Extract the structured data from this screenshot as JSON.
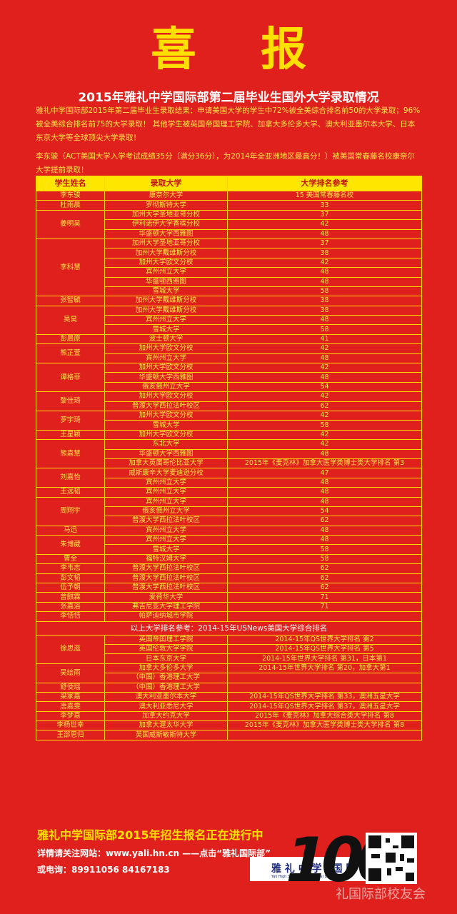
{
  "headline": "喜 报",
  "subtitle": "2015年雅礼中学国际部第二届毕业生国外大学录取情况",
  "intro": "雅礼中学国际部2015年第二届毕业生录取结果：申请美国大学的学生中72%被全美综合排名前50的大学录取；96%被全美综合排名前75的大学录取！ 其他学生被英国帝国理工学院、加拿大多伦多大学、澳大利亚墨尔本大学、日本东京大学等全球顶尖大学录取！",
  "highlight": "李东骏（ACT美国大学入学考试成绩35分（满分36分），为2014年全亚洲地区最高分！）被美国常春藤名校康奈尔大学提前录取！",
  "table": {
    "headers": [
      "学生姓名",
      "录取大学",
      "大学排名参考"
    ],
    "section_note": "以上大学排名参考：2014-15年USNews美国大学综合排名",
    "rows": [
      {
        "name": "李东骏",
        "schools": [
          [
            "康奈尔大学",
            "15 美国常春藤名校"
          ]
        ]
      },
      {
        "name": "杜雨晨",
        "schools": [
          [
            "罗彻斯特大学",
            "33"
          ]
        ]
      },
      {
        "name": "姜明昊",
        "schools": [
          [
            "加州大学圣地亚哥分校",
            "37"
          ],
          [
            "伊利诺伊大学香槟分校",
            "42"
          ],
          [
            "华盛顿大学西雅图",
            "48"
          ]
        ]
      },
      {
        "name": "李科慧",
        "schools": [
          [
            "加州大学圣地亚哥分校",
            "37"
          ],
          [
            "加州大学戴维斯分校",
            "38"
          ],
          [
            "加州大学欧文分校",
            "42"
          ],
          [
            "宾州州立大学",
            "48"
          ],
          [
            "华盛顿西雅图",
            "48"
          ],
          [
            "雪城大学",
            "58"
          ]
        ]
      },
      {
        "name": "张智毓",
        "schools": [
          [
            "加州大学戴维斯分校",
            "38"
          ]
        ]
      },
      {
        "name": "吴昊",
        "schools": [
          [
            "加州大学戴维斯分校",
            "38"
          ],
          [
            "宾州州立大学",
            "48"
          ],
          [
            "雪城大学",
            "58"
          ]
        ]
      },
      {
        "name": "彭晨原",
        "schools": [
          [
            "波士顿大学",
            "41"
          ]
        ]
      },
      {
        "name": "熊芷萱",
        "schools": [
          [
            "加州大学欧文分校",
            "42"
          ],
          [
            "宾州州立大学",
            "48"
          ]
        ]
      },
      {
        "name": "谭格菲",
        "schools": [
          [
            "加州大学欧文分校",
            "42"
          ],
          [
            "华盛顿大学西雅图",
            "48"
          ],
          [
            "俄亥俄州立大学",
            "54"
          ]
        ]
      },
      {
        "name": "黎佳琦",
        "schools": [
          [
            "加州大学欧文分校",
            "42"
          ],
          [
            "普渡大学西拉法叶校区",
            "62"
          ]
        ]
      },
      {
        "name": "罗宇琦",
        "schools": [
          [
            "加州大学欧文分校",
            "42"
          ],
          [
            "雪城大学",
            "58"
          ]
        ]
      },
      {
        "name": "王星颖",
        "schools": [
          [
            "加州大学欧文分校",
            "42"
          ]
        ]
      },
      {
        "name": "熊嘉慧",
        "schools": [
          [
            "东北大学",
            "42"
          ],
          [
            "华盛顿大学西雅图",
            "48"
          ],
          [
            "加拿大英属哥伦比亚大学",
            "2015年《麦克林》加拿大医学类博士类大学排名 第3"
          ]
        ]
      },
      {
        "name": "刘嘉怡",
        "schools": [
          [
            "威斯康辛大学麦迪逊分校",
            "47"
          ],
          [
            "宾州州立大学",
            "48"
          ]
        ]
      },
      {
        "name": "王远韬",
        "schools": [
          [
            "宾州州立大学",
            "48"
          ]
        ]
      },
      {
        "name": "周翔宇",
        "schools": [
          [
            "宾州州立大学",
            "48"
          ],
          [
            "俄亥俄州立大学",
            "54"
          ],
          [
            "普渡大学西拉法叶校区",
            "62"
          ]
        ]
      },
      {
        "name": "马迅",
        "schools": [
          [
            "宾州州立大学",
            "48"
          ]
        ]
      },
      {
        "name": "朱博葳",
        "schools": [
          [
            "宾州州立大学",
            "48"
          ],
          [
            "雪城大学",
            "58"
          ]
        ]
      },
      {
        "name": "曹全",
        "schools": [
          [
            "福特汉姆大学",
            "58"
          ]
        ]
      },
      {
        "name": "李韦志",
        "schools": [
          [
            "普渡大学西拉法叶校区",
            "62"
          ]
        ]
      },
      {
        "name": "彭文韬",
        "schools": [
          [
            "普渡大学西拉法叶校区",
            "62"
          ]
        ]
      },
      {
        "name": "伍予朝",
        "schools": [
          [
            "普渡大学西拉法叶校区",
            "62"
          ]
        ]
      },
      {
        "name": "曾麒霖",
        "schools": [
          [
            "爱荷华大学",
            "71"
          ]
        ]
      },
      {
        "name": "张嘉浴",
        "schools": [
          [
            "弗吉尼亚大学理工学院",
            "71"
          ]
        ]
      },
      {
        "name": "李恬恬",
        "schools": [
          [
            "帕萨迪纳城市学院",
            ""
          ]
        ]
      }
    ],
    "rows2": [
      {
        "name": "徐思滋",
        "schools": [
          [
            "英国帝国理工学院",
            "2014-15年QS世界大学排名 第2"
          ],
          [
            "英国伦敦大学学院",
            "2014-15年QS世界大学排名 第5"
          ],
          [
            "日本东京大学",
            "2014-15年世界大学排名 第31，日本第1"
          ]
        ]
      },
      {
        "name": "吴绘雨",
        "schools": [
          [
            "加拿大多伦多大学",
            "2014-15年世界大学排名 第20，加拿大第1"
          ],
          [
            "（中国）香港理工大学",
            ""
          ]
        ]
      },
      {
        "name": "舒便瑶",
        "schools": [
          [
            "（中国）香港理工大学",
            ""
          ]
        ]
      },
      {
        "name": "梁家嘉",
        "schools": [
          [
            "澳大利亚墨尔本大学",
            "2014-15年QS世界大学排名 第33，澳洲五星大学"
          ]
        ]
      },
      {
        "name": "唐嘉雯",
        "schools": [
          [
            "澳大利亚悉尼大学",
            "2014-15年QS世界大学排名 第37，澳洲五星大学"
          ]
        ]
      },
      {
        "name": "李梦嘉",
        "schools": [
          [
            "加拿大约克大学",
            "2015年《麦克林》加拿大综合类大学排名 第8"
          ]
        ]
      },
      {
        "name": "李杨世幸",
        "schools": [
          [
            "加拿大渥太华大学",
            "2015年《麦克林》加拿大医学类博士类大学排名 第8"
          ]
        ]
      },
      {
        "name": "王邵思归",
        "schools": [
          [
            "英国威斯敏斯特大学",
            ""
          ]
        ]
      }
    ]
  },
  "footer": {
    "title": "雅礼中学国际部2015年招生报名正在进行中",
    "website": "详情请关注网站：www.yali.hn.cn ——点击“雅礼国际部”",
    "phone": "或电询：89911056  84167183"
  },
  "logo": {
    "school": "雅 礼 中 学 | 国 际 部",
    "sub": "Yali High School International Department"
  },
  "watermark": {
    "number": "100",
    "text": "礼国际部校友会"
  },
  "colors": {
    "background": "#e0201c",
    "headline": "#ffe000",
    "table_border": "#ffd800",
    "header_fill": "#ffe600"
  }
}
